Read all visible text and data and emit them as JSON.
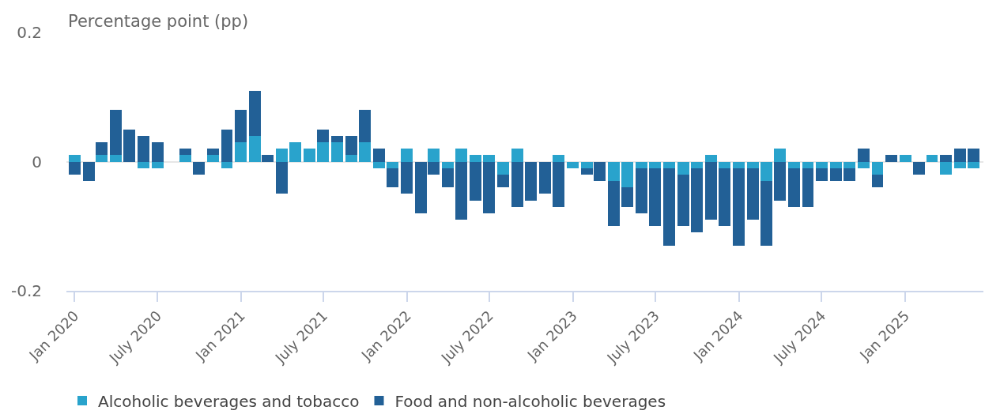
{
  "chart_data": {
    "type": "bar",
    "stacked": true,
    "ylabel": "Percentage point (pp)",
    "x": [
      "2020-01",
      "2020-02",
      "2020-03",
      "2020-04",
      "2020-05",
      "2020-06",
      "2020-07",
      "2020-08",
      "2020-09",
      "2020-10",
      "2020-11",
      "2020-12",
      "2021-01",
      "2021-02",
      "2021-03",
      "2021-04",
      "2021-05",
      "2021-06",
      "2021-07",
      "2021-08",
      "2021-09",
      "2021-10",
      "2021-11",
      "2021-12",
      "2022-01",
      "2022-02",
      "2022-03",
      "2022-04",
      "2022-05",
      "2022-06",
      "2022-07",
      "2022-08",
      "2022-09",
      "2022-10",
      "2022-11",
      "2022-12",
      "2023-01",
      "2023-02",
      "2023-03",
      "2023-04",
      "2023-05",
      "2023-06",
      "2023-07",
      "2023-08",
      "2023-09",
      "2023-10",
      "2023-11",
      "2023-12",
      "2024-01",
      "2024-02",
      "2024-03",
      "2024-04",
      "2024-05",
      "2024-06",
      "2024-07",
      "2024-08",
      "2024-09",
      "2024-10",
      "2024-11",
      "2024-12",
      "2025-01",
      "2025-02",
      "2025-03",
      "2025-04",
      "2025-05",
      "2025-06"
    ],
    "series": [
      {
        "name": "Alcoholic beverages and tobacco",
        "color": "#29a3cc",
        "values": [
          0.01,
          0,
          0.01,
          0.01,
          0,
          -0.01,
          -0.01,
          0,
          0.01,
          0,
          0.01,
          -0.01,
          0.03,
          0.04,
          0,
          0.02,
          0.03,
          0.02,
          0.03,
          0.03,
          0.01,
          0.03,
          -0.01,
          -0.01,
          0.02,
          0,
          0.02,
          -0.01,
          0.02,
          0.01,
          0.01,
          -0.02,
          0.02,
          0,
          0,
          0.01,
          -0.01,
          -0.01,
          0,
          -0.03,
          -0.04,
          -0.01,
          -0.01,
          -0.01,
          -0.02,
          -0.01,
          0.01,
          -0.01,
          -0.01,
          -0.01,
          -0.03,
          0.02,
          -0.01,
          -0.01,
          -0.01,
          -0.01,
          -0.01,
          -0.01,
          -0.02,
          0,
          0.01,
          0,
          0.01,
          -0.02,
          -0.01,
          -0.01
        ]
      },
      {
        "name": "Food and non-alcoholic beverages",
        "color": "#226096",
        "values": [
          -0.02,
          -0.03,
          0.02,
          0.07,
          0.05,
          0.04,
          0.03,
          0,
          0.01,
          -0.02,
          0.01,
          0.05,
          0.05,
          0.07,
          0.01,
          -0.05,
          0,
          0,
          0.02,
          0.01,
          0.03,
          0.05,
          0.02,
          -0.03,
          -0.05,
          -0.08,
          -0.02,
          -0.03,
          -0.09,
          -0.06,
          -0.08,
          -0.02,
          -0.07,
          -0.06,
          -0.05,
          -0.07,
          0,
          -0.01,
          -0.03,
          -0.07,
          -0.03,
          -0.07,
          -0.09,
          -0.12,
          -0.08,
          -0.1,
          -0.09,
          -0.09,
          -0.12,
          -0.08,
          -0.1,
          -0.06,
          -0.06,
          -0.06,
          -0.02,
          -0.02,
          -0.02,
          0.02,
          -0.02,
          0.01,
          0,
          -0.02,
          0,
          0.01,
          0.02,
          0.02
        ]
      }
    ],
    "xlim": [
      "2019-12-14",
      "2025-06-22"
    ],
    "xticks": [
      {
        "value": "2020-01",
        "label": "Jan 2020"
      },
      {
        "value": "2020-07",
        "label": "July 2020"
      },
      {
        "value": "2021-01",
        "label": "Jan 2021"
      },
      {
        "value": "2021-07",
        "label": "July 2021"
      },
      {
        "value": "2022-01",
        "label": "Jan 2022"
      },
      {
        "value": "2022-07",
        "label": "July 2022"
      },
      {
        "value": "2023-01",
        "label": "Jan 2023"
      },
      {
        "value": "2023-07",
        "label": "July 2023"
      },
      {
        "value": "2024-01",
        "label": "Jan 2024"
      },
      {
        "value": "2024-07",
        "label": "July 2024"
      },
      {
        "value": "2025-01",
        "label": "Jan 2025"
      }
    ],
    "ylim": [
      -0.2,
      0.2
    ],
    "yticks": [
      0.2,
      0,
      -0.2
    ],
    "grid": "y",
    "legend": "bottom"
  }
}
